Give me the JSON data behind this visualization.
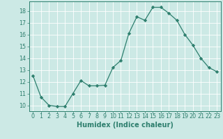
{
  "x": [
    0,
    1,
    2,
    3,
    4,
    5,
    6,
    7,
    8,
    9,
    10,
    11,
    12,
    13,
    14,
    15,
    16,
    17,
    18,
    19,
    20,
    21,
    22,
    23
  ],
  "y": [
    12.5,
    10.7,
    10.0,
    9.9,
    9.9,
    11.0,
    12.1,
    11.65,
    11.65,
    11.7,
    13.2,
    13.8,
    16.1,
    17.5,
    17.2,
    18.3,
    18.3,
    17.8,
    17.2,
    16.0,
    15.1,
    14.0,
    13.2,
    12.85
  ],
  "line_color": "#2e7f6e",
  "marker": "D",
  "marker_size": 2.2,
  "bg_color": "#cce9e5",
  "grid_color": "#ffffff",
  "xlabel": "Humidex (Indice chaleur)",
  "ylim": [
    9.5,
    18.8
  ],
  "xlim": [
    -0.5,
    23.5
  ],
  "yticks": [
    10,
    11,
    12,
    13,
    14,
    15,
    16,
    17,
    18
  ],
  "xticks": [
    0,
    1,
    2,
    3,
    4,
    5,
    6,
    7,
    8,
    9,
    10,
    11,
    12,
    13,
    14,
    15,
    16,
    17,
    18,
    19,
    20,
    21,
    22,
    23
  ],
  "tick_fontsize": 5.8,
  "label_fontsize": 7.0,
  "spine_color": "#2e7f6e",
  "tick_color": "#2e7f6e",
  "label_color": "#2e7f6e"
}
